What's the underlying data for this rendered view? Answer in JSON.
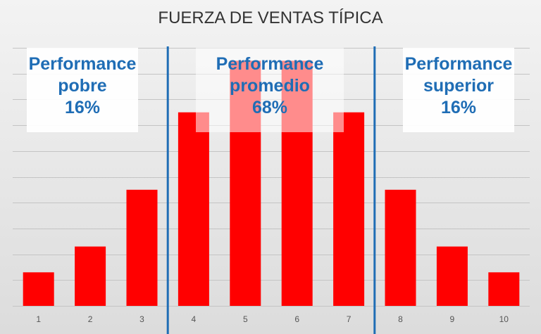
{
  "chart_data": {
    "type": "bar",
    "title": "FUERZA DE VENTAS TÍPICA",
    "categories": [
      "1",
      "2",
      "3",
      "4",
      "5",
      "6",
      "7",
      "8",
      "9",
      "10"
    ],
    "values": [
      1.3,
      2.3,
      4.5,
      7.5,
      9.5,
      9.5,
      7.5,
      4.5,
      2.3,
      1.3
    ],
    "ylim": [
      0,
      10
    ],
    "grid": true,
    "bar_color": "#ff0000",
    "separator_color": "#1f6db5",
    "annotations": [
      {
        "line1": "Performance",
        "line2": "pobre",
        "line3": "16%"
      },
      {
        "line1": "Performance",
        "line2": "promedio",
        "line3": "68%"
      },
      {
        "line1": "Performance",
        "line2": "superior",
        "line3": "16%"
      }
    ]
  }
}
